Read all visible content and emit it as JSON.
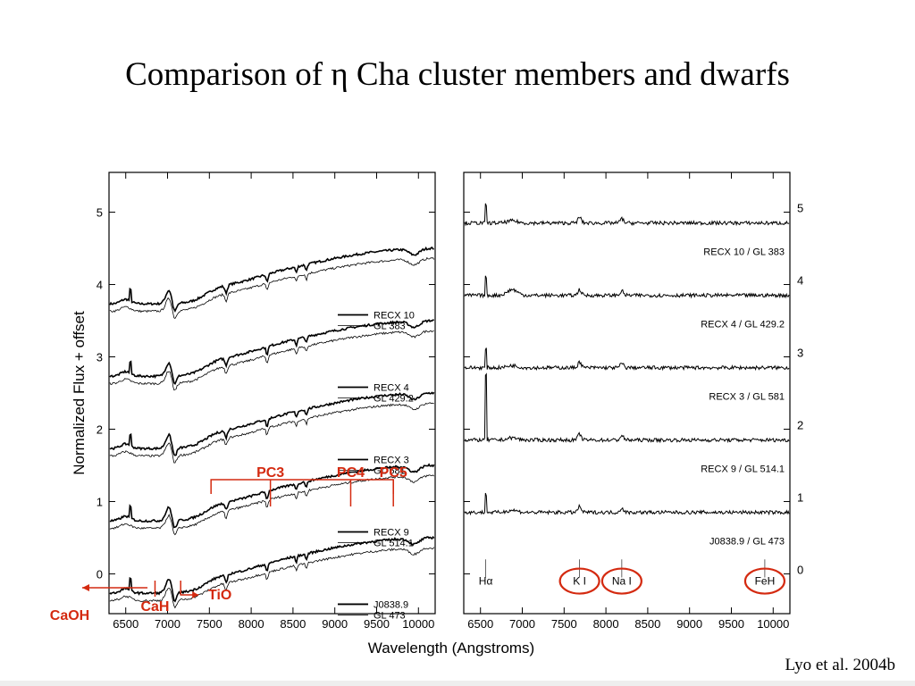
{
  "title": "Comparison of  η Cha cluster members and dwarfs",
  "citation": "Lyo et al. 2004b",
  "colors": {
    "annotation": "#d42a10",
    "spectra": "#000000"
  },
  "chart_data": [
    {
      "type": "line",
      "panel": "left",
      "xlabel": "Wavelength (Angstroms)",
      "ylabel": "Normalized Flux + offset",
      "xlim": [
        6300,
        10200
      ],
      "ylim": [
        -0.55,
        5.55
      ],
      "xticks": [
        "6500",
        "7000",
        "7500",
        "8000",
        "8500",
        "9000",
        "9500",
        "10000"
      ],
      "yticks": [
        "0",
        "1",
        "2",
        "3",
        "4",
        "5"
      ],
      "pairs": [
        {
          "legend": [
            "RECX 10",
            "GL 383"
          ],
          "offset": 4
        },
        {
          "legend": [
            "RECX 4",
            "GL 429.2"
          ],
          "offset": 3
        },
        {
          "legend": [
            "RECX 3",
            "GL 581"
          ],
          "offset": 2
        },
        {
          "legend": [
            "RECX 9",
            "GL 514.1"
          ],
          "offset": 1
        },
        {
          "legend": [
            "J0838.9",
            "GL 473"
          ],
          "offset": 0
        }
      ],
      "annotations": [
        {
          "text": "PC3",
          "x": 8230
        },
        {
          "text": "PC4",
          "x": 9190
        },
        {
          "text": "PC5",
          "x": 9700
        },
        {
          "text": "CaOH",
          "x": 6300
        },
        {
          "text": "CaH",
          "x": 6850
        },
        {
          "text": "TiO",
          "x": 7050
        }
      ]
    },
    {
      "type": "line",
      "panel": "right",
      "xlabel": "",
      "ylabel": "",
      "xlim": [
        6300,
        10200
      ],
      "ylim": [
        -0.55,
        5.55
      ],
      "xticks": [
        "6500",
        "7000",
        "7500",
        "8000",
        "8500",
        "9000",
        "9500",
        "10000"
      ],
      "yticks": [
        "0",
        "1",
        "2",
        "3",
        "4",
        "5"
      ],
      "ratios": [
        {
          "label": "RECX 10 / GL 383",
          "offset": 4.85
        },
        {
          "label": "RECX 4 / GL 429.2",
          "offset": 3.85
        },
        {
          "label": "RECX 3 / GL 581",
          "offset": 2.85
        },
        {
          "label": "RECX 9 / GL 514.1",
          "offset": 1.85
        },
        {
          "label": "J0838.9 / GL 473",
          "offset": 0.85
        }
      ],
      "features": [
        {
          "label": "Hα",
          "x": 6563,
          "circled": false
        },
        {
          "label": "K I",
          "x": 7685,
          "circled": true
        },
        {
          "label": "Na I",
          "x": 8190,
          "circled": true
        },
        {
          "label": "FeH",
          "x": 9900,
          "circled": true
        }
      ]
    }
  ]
}
